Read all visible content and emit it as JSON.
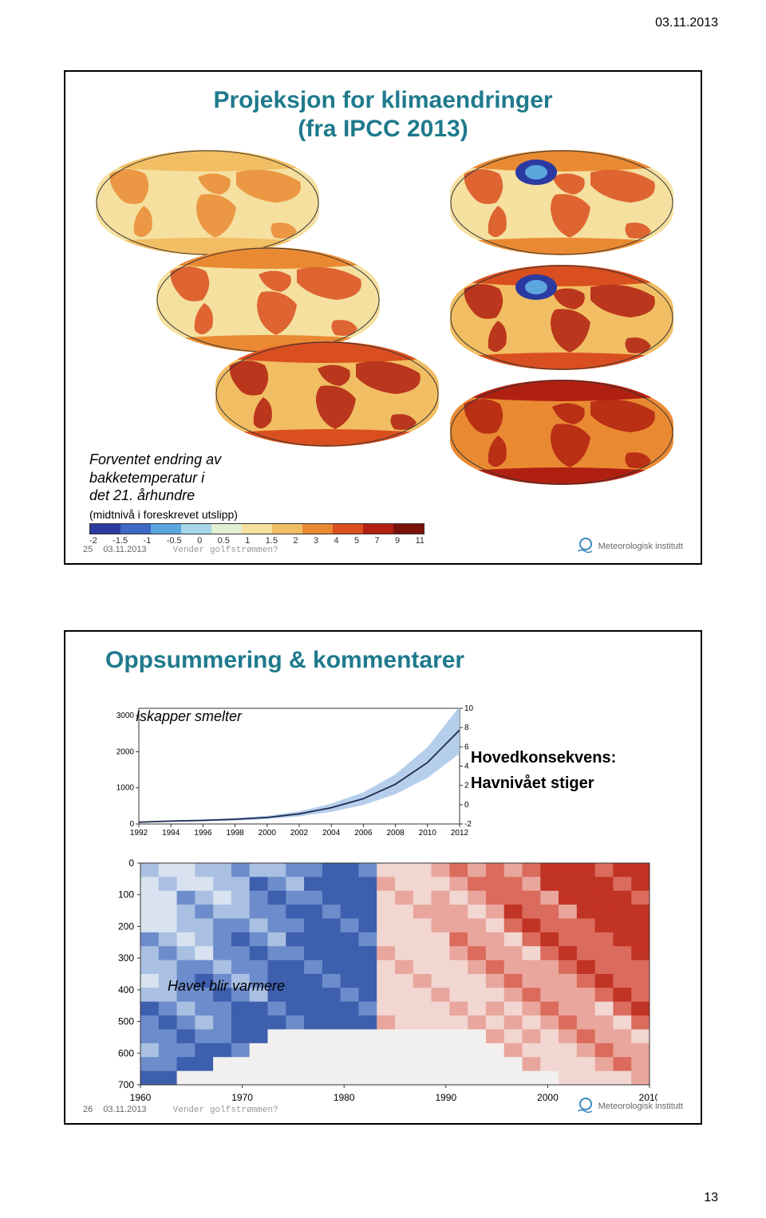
{
  "page": {
    "header_date": "03.11.2013",
    "page_number": "13"
  },
  "slide1": {
    "title": "Projeksjon for klimaendringer\n(fra IPCC 2013)",
    "expected_line1": "Forventet endring av",
    "expected_line2": "bakketemperatur i",
    "expected_line3": "det 21. århundre",
    "expected_sub": "(midtnivå i foreskrevet utslipp)",
    "colorbar": {
      "colors": [
        "#2b3aa0",
        "#3e68c4",
        "#5ca6de",
        "#a6d6ea",
        "#e3efd1",
        "#f5e0a0",
        "#f2be63",
        "#e98a33",
        "#d94f1f",
        "#b02011",
        "#7a120a"
      ],
      "ticks": [
        "-2",
        "-1.5",
        "-1",
        "-0.5",
        "0",
        "0.5",
        "1",
        "1.5",
        "2",
        "3",
        "4",
        "5",
        "7",
        "9",
        "11"
      ]
    },
    "footer": {
      "num": "25",
      "date": "03.11.2013",
      "caption": "Vender golfstrømmen?",
      "logo": "Meteorologisk institutt"
    }
  },
  "slide2": {
    "title": "Oppsummering & kommentarer",
    "ice_label": "Iskapper smelter",
    "consequence_line1": "Hovedkonsekvens:",
    "consequence_line2": "Havnivået stiger",
    "ocean_label": "Havet blir varmere",
    "ice_chart": {
      "type": "line",
      "x_years": [
        1992,
        1994,
        1996,
        1998,
        2000,
        2002,
        2004,
        2006,
        2008,
        2010,
        2012
      ],
      "left_ticks": [
        0,
        1000,
        2000,
        3000
      ],
      "right_ticks": [
        -2,
        0,
        2,
        4,
        6,
        8,
        10
      ],
      "values": [
        50,
        80,
        100,
        130,
        180,
        280,
        450,
        700,
        1100,
        1700,
        2600
      ],
      "line_color": "#1f2a50",
      "band_color": "#a8c6e8",
      "axis_color": "#333333",
      "background": "#ffffff",
      "fontsize": 10,
      "xlim": [
        1992,
        2012
      ],
      "ylim_left": [
        0,
        3200
      ],
      "ylim_right": [
        -2,
        10
      ]
    },
    "ocean_heatmap": {
      "type": "heatmap",
      "x_ticks": [
        1960,
        1970,
        1980,
        1990,
        2000,
        2010
      ],
      "y_ticks": [
        0,
        100,
        200,
        300,
        400,
        500,
        600,
        700
      ],
      "y_label_side": "left",
      "colors_cool": [
        "#3d5fae",
        "#6d8ccb",
        "#a9c0e2",
        "#d8e2f0"
      ],
      "colors_warm": [
        "#f2d6d2",
        "#e9a69c",
        "#db6b5c",
        "#c13324"
      ],
      "background": "#ffffff",
      "axis_color": "#333333",
      "fontsize": 12
    },
    "footer": {
      "num": "26",
      "date": "03.11.2013",
      "caption": "Vender golfstrømmen?",
      "logo": "Meteorologisk institutt"
    }
  }
}
